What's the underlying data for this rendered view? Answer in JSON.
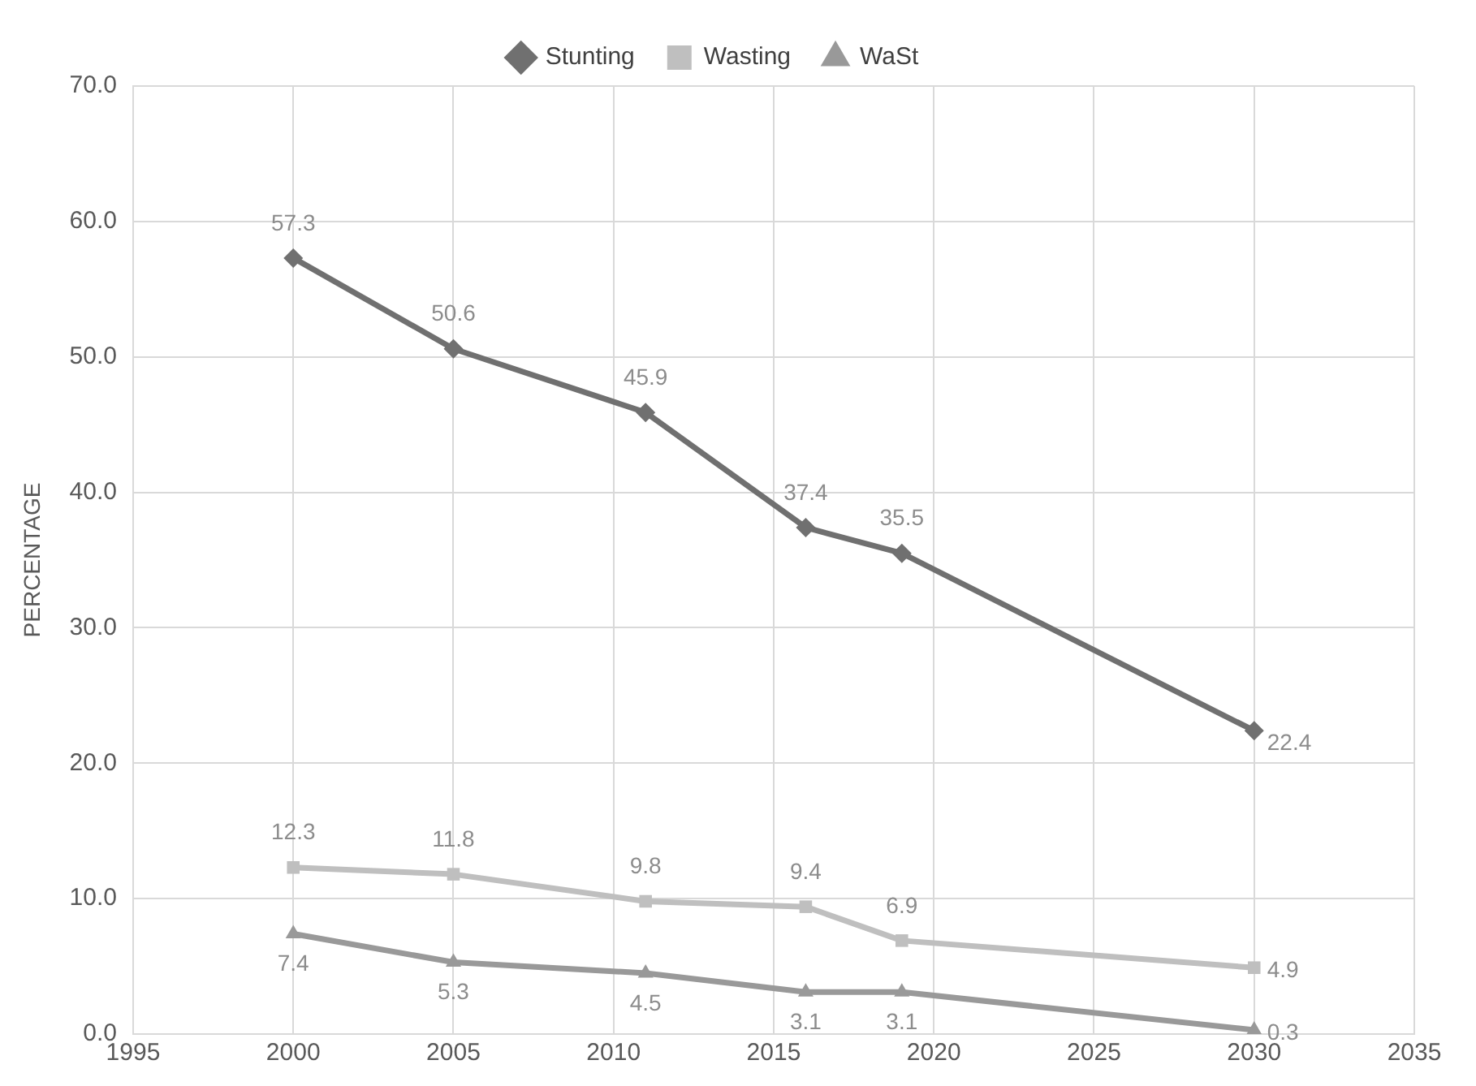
{
  "chart_data": {
    "type": "line",
    "ylabel": "PERCENTAGE",
    "xlim": [
      1995,
      2035
    ],
    "xticks": [
      1995,
      2000,
      2005,
      2010,
      2015,
      2020,
      2025,
      2030,
      2035
    ],
    "ylim": [
      0,
      70
    ],
    "yticks": [
      {
        "value": 0,
        "label": "0.0"
      },
      {
        "value": 10,
        "label": "10.0"
      },
      {
        "value": 20,
        "label": "20.0"
      },
      {
        "value": 30,
        "label": "30.0"
      },
      {
        "value": 40,
        "label": "40.0"
      },
      {
        "value": 50,
        "label": "50.0"
      },
      {
        "value": 60,
        "label": "60.0"
      },
      {
        "value": 70,
        "label": "70.0"
      }
    ],
    "x": [
      2000,
      2005,
      2011,
      2016,
      2019,
      2030
    ],
    "series": [
      {
        "name": "Stunting",
        "color": "#707070",
        "marker": "diamond",
        "values": [
          57.3,
          50.6,
          45.9,
          37.4,
          35.5,
          22.4
        ]
      },
      {
        "name": "Wasting",
        "color": "#bfbfbf",
        "marker": "square",
        "values": [
          12.3,
          11.8,
          9.8,
          9.4,
          6.9,
          4.9
        ]
      },
      {
        "name": "WaSt",
        "color": "#999999",
        "marker": "triangle",
        "values": [
          7.4,
          5.3,
          4.5,
          3.1,
          3.1,
          0.3
        ]
      }
    ],
    "grid": true,
    "legend": "top",
    "data_labels": true,
    "line_style": "solid"
  }
}
